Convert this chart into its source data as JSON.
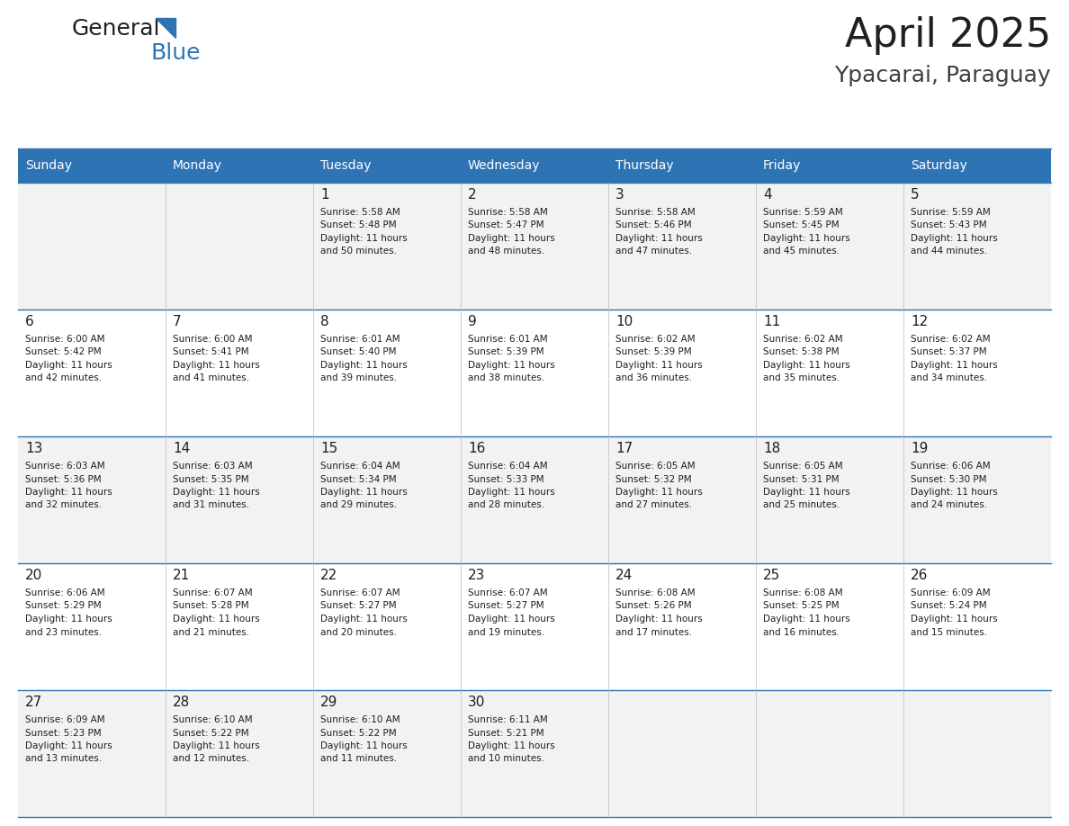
{
  "title": "April 2025",
  "subtitle": "Ypacarai, Paraguay",
  "header_color": "#2E74B5",
  "header_text_color": "#FFFFFF",
  "divider_color": "#2E74B5",
  "day_names": [
    "Sunday",
    "Monday",
    "Tuesday",
    "Wednesday",
    "Thursday",
    "Friday",
    "Saturday"
  ],
  "bg_color": "#FFFFFF",
  "cell_bg_even": "#F2F2F2",
  "cell_bg_odd": "#FFFFFF",
  "title_color": "#1F1F1F",
  "subtitle_color": "#404040",
  "day_num_color": "#1F1F1F",
  "info_color": "#1F1F1F",
  "logo_general_color": "#1F1F1F",
  "logo_blue_color": "#2E74B5",
  "calendar": [
    [
      {
        "day": "",
        "sunrise": "",
        "sunset": "",
        "daylight": ""
      },
      {
        "day": "",
        "sunrise": "",
        "sunset": "",
        "daylight": ""
      },
      {
        "day": "1",
        "sunrise": "5:58 AM",
        "sunset": "5:48 PM",
        "daylight": "11 hours and 50 minutes."
      },
      {
        "day": "2",
        "sunrise": "5:58 AM",
        "sunset": "5:47 PM",
        "daylight": "11 hours and 48 minutes."
      },
      {
        "day": "3",
        "sunrise": "5:58 AM",
        "sunset": "5:46 PM",
        "daylight": "11 hours and 47 minutes."
      },
      {
        "day": "4",
        "sunrise": "5:59 AM",
        "sunset": "5:45 PM",
        "daylight": "11 hours and 45 minutes."
      },
      {
        "day": "5",
        "sunrise": "5:59 AM",
        "sunset": "5:43 PM",
        "daylight": "11 hours and 44 minutes."
      }
    ],
    [
      {
        "day": "6",
        "sunrise": "6:00 AM",
        "sunset": "5:42 PM",
        "daylight": "11 hours and 42 minutes."
      },
      {
        "day": "7",
        "sunrise": "6:00 AM",
        "sunset": "5:41 PM",
        "daylight": "11 hours and 41 minutes."
      },
      {
        "day": "8",
        "sunrise": "6:01 AM",
        "sunset": "5:40 PM",
        "daylight": "11 hours and 39 minutes."
      },
      {
        "day": "9",
        "sunrise": "6:01 AM",
        "sunset": "5:39 PM",
        "daylight": "11 hours and 38 minutes."
      },
      {
        "day": "10",
        "sunrise": "6:02 AM",
        "sunset": "5:39 PM",
        "daylight": "11 hours and 36 minutes."
      },
      {
        "day": "11",
        "sunrise": "6:02 AM",
        "sunset": "5:38 PM",
        "daylight": "11 hours and 35 minutes."
      },
      {
        "day": "12",
        "sunrise": "6:02 AM",
        "sunset": "5:37 PM",
        "daylight": "11 hours and 34 minutes."
      }
    ],
    [
      {
        "day": "13",
        "sunrise": "6:03 AM",
        "sunset": "5:36 PM",
        "daylight": "11 hours and 32 minutes."
      },
      {
        "day": "14",
        "sunrise": "6:03 AM",
        "sunset": "5:35 PM",
        "daylight": "11 hours and 31 minutes."
      },
      {
        "day": "15",
        "sunrise": "6:04 AM",
        "sunset": "5:34 PM",
        "daylight": "11 hours and 29 minutes."
      },
      {
        "day": "16",
        "sunrise": "6:04 AM",
        "sunset": "5:33 PM",
        "daylight": "11 hours and 28 minutes."
      },
      {
        "day": "17",
        "sunrise": "6:05 AM",
        "sunset": "5:32 PM",
        "daylight": "11 hours and 27 minutes."
      },
      {
        "day": "18",
        "sunrise": "6:05 AM",
        "sunset": "5:31 PM",
        "daylight": "11 hours and 25 minutes."
      },
      {
        "day": "19",
        "sunrise": "6:06 AM",
        "sunset": "5:30 PM",
        "daylight": "11 hours and 24 minutes."
      }
    ],
    [
      {
        "day": "20",
        "sunrise": "6:06 AM",
        "sunset": "5:29 PM",
        "daylight": "11 hours and 23 minutes."
      },
      {
        "day": "21",
        "sunrise": "6:07 AM",
        "sunset": "5:28 PM",
        "daylight": "11 hours and 21 minutes."
      },
      {
        "day": "22",
        "sunrise": "6:07 AM",
        "sunset": "5:27 PM",
        "daylight": "11 hours and 20 minutes."
      },
      {
        "day": "23",
        "sunrise": "6:07 AM",
        "sunset": "5:27 PM",
        "daylight": "11 hours and 19 minutes."
      },
      {
        "day": "24",
        "sunrise": "6:08 AM",
        "sunset": "5:26 PM",
        "daylight": "11 hours and 17 minutes."
      },
      {
        "day": "25",
        "sunrise": "6:08 AM",
        "sunset": "5:25 PM",
        "daylight": "11 hours and 16 minutes."
      },
      {
        "day": "26",
        "sunrise": "6:09 AM",
        "sunset": "5:24 PM",
        "daylight": "11 hours and 15 minutes."
      }
    ],
    [
      {
        "day": "27",
        "sunrise": "6:09 AM",
        "sunset": "5:23 PM",
        "daylight": "11 hours and 13 minutes."
      },
      {
        "day": "28",
        "sunrise": "6:10 AM",
        "sunset": "5:22 PM",
        "daylight": "11 hours and 12 minutes."
      },
      {
        "day": "29",
        "sunrise": "6:10 AM",
        "sunset": "5:22 PM",
        "daylight": "11 hours and 11 minutes."
      },
      {
        "day": "30",
        "sunrise": "6:11 AM",
        "sunset": "5:21 PM",
        "daylight": "11 hours and 10 minutes."
      },
      {
        "day": "",
        "sunrise": "",
        "sunset": "",
        "daylight": ""
      },
      {
        "day": "",
        "sunrise": "",
        "sunset": "",
        "daylight": ""
      },
      {
        "day": "",
        "sunrise": "",
        "sunset": "",
        "daylight": ""
      }
    ]
  ],
  "fig_width": 11.88,
  "fig_height": 9.18,
  "dpi": 100
}
